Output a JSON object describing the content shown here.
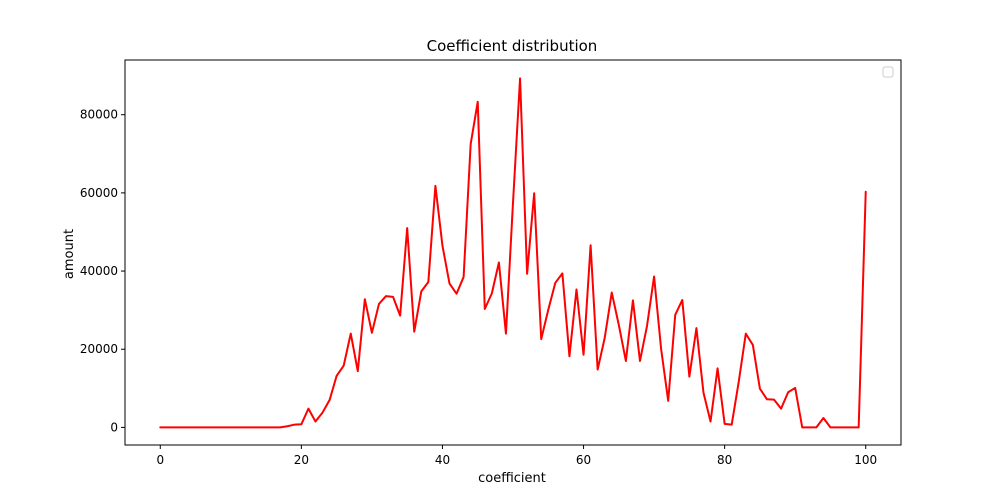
{
  "chart_data": {
    "type": "line",
    "title": "Coefficient distribution",
    "xlabel": "coefficient",
    "ylabel": "amount",
    "xlim": [
      -5,
      105
    ],
    "ylim": [
      -4500,
      94000
    ],
    "xticks": [
      0,
      20,
      40,
      60,
      80,
      100
    ],
    "yticks": [
      0,
      20000,
      40000,
      60000,
      80000
    ],
    "grid": false,
    "legend": {
      "placement": "top-right",
      "entries": []
    },
    "series": [
      {
        "color": "#ff0000",
        "x": [
          0,
          1,
          2,
          3,
          4,
          5,
          6,
          7,
          8,
          9,
          10,
          11,
          12,
          13,
          14,
          15,
          16,
          17,
          18,
          19,
          20,
          21,
          22,
          23,
          24,
          25,
          26,
          27,
          28,
          29,
          30,
          31,
          32,
          33,
          34,
          35,
          36,
          37,
          38,
          39,
          40,
          41,
          42,
          43,
          44,
          45,
          46,
          47,
          48,
          49,
          50,
          51,
          52,
          53,
          54,
          55,
          56,
          57,
          58,
          59,
          60,
          61,
          62,
          63,
          64,
          65,
          66,
          67,
          68,
          69,
          70,
          71,
          72,
          73,
          74,
          75,
          76,
          77,
          78,
          79,
          80,
          81,
          82,
          83,
          84,
          85,
          86,
          87,
          88,
          89,
          90,
          91,
          92,
          93,
          94,
          95,
          96,
          97,
          98,
          99,
          100
        ],
        "values": [
          0,
          0,
          0,
          0,
          0,
          0,
          0,
          0,
          0,
          0,
          0,
          0,
          0,
          0,
          0,
          0,
          0,
          0,
          300,
          700,
          800,
          4800,
          1500,
          3800,
          7000,
          13200,
          15800,
          24000,
          14400,
          32800,
          24200,
          31600,
          33600,
          33400,
          28600,
          51000,
          24500,
          34800,
          37200,
          61800,
          46500,
          36800,
          34200,
          38500,
          72500,
          83300,
          30300,
          34300,
          42200,
          24000,
          57500,
          89300,
          39300,
          59900,
          22600,
          30100,
          37000,
          39400,
          18200,
          35300,
          18600,
          46600,
          14800,
          22900,
          34500,
          26200,
          17000,
          32500,
          17000,
          26000,
          38600,
          20000,
          6800,
          28800,
          32600,
          13000,
          25400,
          8900,
          1500,
          15100,
          900,
          700,
          11700,
          24000,
          21100,
          9900,
          7200,
          7100,
          4800,
          9000,
          10100,
          0,
          0,
          0,
          2400,
          0,
          0,
          0,
          0,
          0,
          60300
        ]
      }
    ]
  },
  "icons": {
    "legend": "empty-legend-box"
  }
}
